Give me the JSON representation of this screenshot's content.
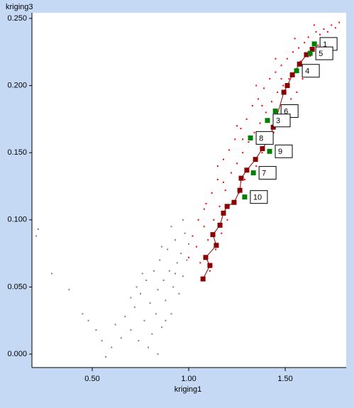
{
  "chart_data": {
    "type": "scatter",
    "xlabel": "kriging1",
    "ylabel": "kriging3",
    "xlim": [
      0.1875,
      1.816
    ],
    "ylim": [
      -0.01,
      0.2542
    ],
    "xticks": [
      {
        "value": 0.5,
        "label": "0.50"
      },
      {
        "value": 1.0,
        "label": "1.00"
      },
      {
        "value": 1.5,
        "label": "1.50"
      }
    ],
    "yticks": [
      {
        "value": 0,
        "label": "0.000"
      },
      {
        "value": 0.05,
        "label": "0.050"
      },
      {
        "value": 0.1,
        "label": "0.100"
      },
      {
        "value": 0.15,
        "label": "0.150"
      },
      {
        "value": 0.2,
        "label": "0.200"
      },
      {
        "value": 0.25,
        "label": "0.250"
      }
    ],
    "series": [
      {
        "color": "#808080",
        "marker": "dot",
        "x": [
          0.22,
          0.21,
          0.29,
          0.38,
          0.45,
          0.48,
          0.52,
          0.55,
          0.57,
          0.6,
          0.62,
          0.65,
          0.67,
          0.7,
          0.72,
          0.74,
          0.75,
          0.77,
          0.78,
          0.8,
          0.81,
          0.82,
          0.83,
          0.84,
          0.85,
          0.86,
          0.87,
          0.88,
          0.89,
          0.9,
          0.91,
          0.92,
          0.93,
          0.94,
          0.95,
          0.96,
          0.97,
          0.98,
          0.99,
          1.0,
          0.79,
          0.84,
          0.76,
          0.88,
          0.93,
          0.97,
          0.86,
          0.91,
          0.73,
          0.7
        ],
        "values": [
          0.093,
          0.088,
          0.06,
          0.048,
          0.03,
          0.025,
          0.018,
          0.01,
          -0.002,
          0.005,
          0.022,
          0.012,
          0.028,
          0.018,
          0.035,
          0.01,
          0.045,
          0.025,
          0.055,
          0.038,
          0.015,
          0.062,
          0.03,
          0.048,
          0.07,
          0.02,
          0.055,
          0.04,
          0.078,
          0.062,
          0.03,
          0.05,
          0.085,
          0.068,
          0.045,
          0.075,
          0.058,
          0.09,
          0.07,
          0.082,
          0.005,
          0.0,
          0.06,
          0.025,
          0.06,
          0.1,
          0.08,
          0.095,
          0.05,
          0.042
        ]
      },
      {
        "color": "#ff0000",
        "marker": "dot",
        "x": [
          1.0,
          1.02,
          1.04,
          1.05,
          1.06,
          1.08,
          1.09,
          1.1,
          1.11,
          1.12,
          1.13,
          1.14,
          1.15,
          1.16,
          1.17,
          1.18,
          1.19,
          1.2,
          1.21,
          1.22,
          1.23,
          1.24,
          1.25,
          1.26,
          1.27,
          1.28,
          1.29,
          1.3,
          1.31,
          1.32,
          1.33,
          1.34,
          1.35,
          1.36,
          1.37,
          1.38,
          1.39,
          1.4,
          1.41,
          1.42,
          1.43,
          1.44,
          1.45,
          1.46,
          1.47,
          1.48,
          1.49,
          1.5,
          1.51,
          1.52,
          1.53,
          1.54,
          1.55,
          1.56,
          1.57,
          1.58,
          1.59,
          1.6,
          1.62,
          1.63,
          1.64,
          1.66,
          1.67,
          1.68,
          1.7,
          1.72,
          1.74,
          1.76,
          1.78,
          1.15,
          1.25,
          1.35,
          1.45,
          1.55,
          1.65,
          1.08,
          1.18,
          1.28,
          1.38,
          1.48
        ],
        "values": [
          0.072,
          0.088,
          0.08,
          0.1,
          0.068,
          0.095,
          0.112,
          0.085,
          0.062,
          0.12,
          0.1,
          0.078,
          0.13,
          0.11,
          0.09,
          0.145,
          0.122,
          0.1,
          0.152,
          0.135,
          0.112,
          0.16,
          0.142,
          0.12,
          0.168,
          0.15,
          0.13,
          0.175,
          0.158,
          0.12,
          0.185,
          0.165,
          0.14,
          0.19,
          0.172,
          0.15,
          0.198,
          0.18,
          0.16,
          0.205,
          0.188,
          0.165,
          0.21,
          0.195,
          0.175,
          0.215,
          0.2,
          0.182,
          0.22,
          0.205,
          0.19,
          0.225,
          0.212,
          0.195,
          0.228,
          0.218,
          0.205,
          0.232,
          0.236,
          0.222,
          0.215,
          0.24,
          0.23,
          0.238,
          0.242,
          0.24,
          0.245,
          0.243,
          0.247,
          0.14,
          0.17,
          0.2,
          0.22,
          0.235,
          0.245,
          0.108,
          0.128,
          0.16,
          0.185,
          0.205
        ]
      },
      {
        "color": "#8b0000",
        "marker": "square",
        "line": true,
        "x": [
          1.074,
          1.11,
          1.088,
          1.143,
          1.125,
          1.162,
          1.18,
          1.199,
          1.235,
          1.265,
          1.272,
          1.301,
          1.346,
          1.382,
          1.419,
          1.438,
          1.456,
          1.493,
          1.511,
          1.537,
          1.574,
          1.61,
          1.64
        ],
        "values": [
          0.056,
          0.066,
          0.072,
          0.081,
          0.089,
          0.096,
          0.105,
          0.11,
          0.113,
          0.122,
          0.131,
          0.137,
          0.145,
          0.153,
          0.161,
          0.169,
          0.177,
          0.195,
          0.2,
          0.208,
          0.216,
          0.223,
          0.227
        ]
      },
      {
        "color": "#008000",
        "marker": "square",
        "x": [
          1.651,
          1.629,
          1.559,
          1.449,
          1.408,
          1.32,
          1.419,
          1.335,
          1.29
        ],
        "values": [
          0.231,
          0.224,
          0.211,
          0.181,
          0.174,
          0.161,
          0.151,
          0.135,
          0.117
        ],
        "labels": [
          "1",
          "5",
          "4",
          "6",
          "3",
          "8",
          "9",
          "7",
          "10"
        ]
      }
    ]
  }
}
